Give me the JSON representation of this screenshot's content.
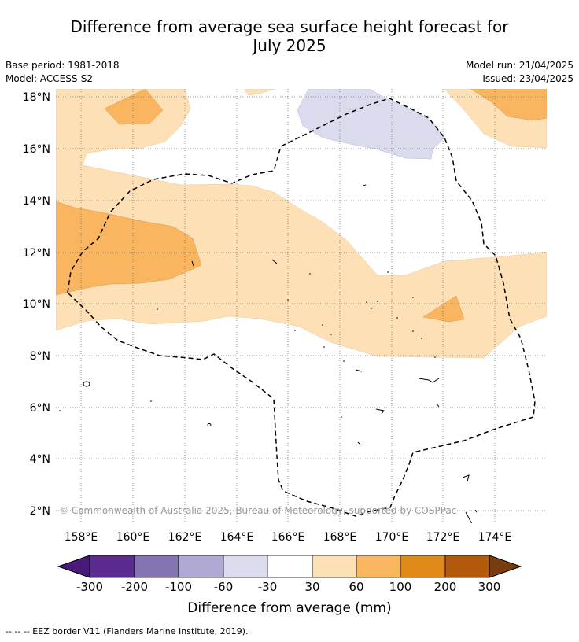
{
  "title_line1": "Difference from average sea surface height forecast for",
  "title_line2": "July 2025",
  "meta_left": {
    "base_period": "Base period: 1981-2018",
    "model": "Model: ACCESS-S2"
  },
  "meta_right": {
    "model_run": "Model run: 21/04/2025",
    "issued": "Issued: 23/04/2025"
  },
  "copyright": "© Commonwealth of Australia 2025, Bureau of Meteorology, supported by COSPPac",
  "lat_labels": [
    "18°N",
    "16°N",
    "14°N",
    "12°N",
    "10°N",
    "8°N",
    "6°N",
    "4°N",
    "2°N"
  ],
  "lon_labels": [
    "158°E",
    "160°E",
    "162°E",
    "164°E",
    "166°E",
    "168°E",
    "170°E",
    "172°E",
    "174°E"
  ],
  "colorbar": {
    "ticks": [
      "-300",
      "-200",
      "-100",
      "-60",
      "-30",
      "30",
      "60",
      "100",
      "200",
      "300"
    ],
    "colors": [
      "#4a1a7a",
      "#5b2a8f",
      "#8474b1",
      "#b0a9d3",
      "#dadbec",
      "#ffffff",
      "#fde0b6",
      "#f9b560",
      "#e08a1b",
      "#b45a0c",
      "#7a3c0e"
    ],
    "label": "Difference from average (mm)"
  },
  "footnote": "--  --  -- EEZ border V11 (Flanders Marine Institute, 2019)."
}
